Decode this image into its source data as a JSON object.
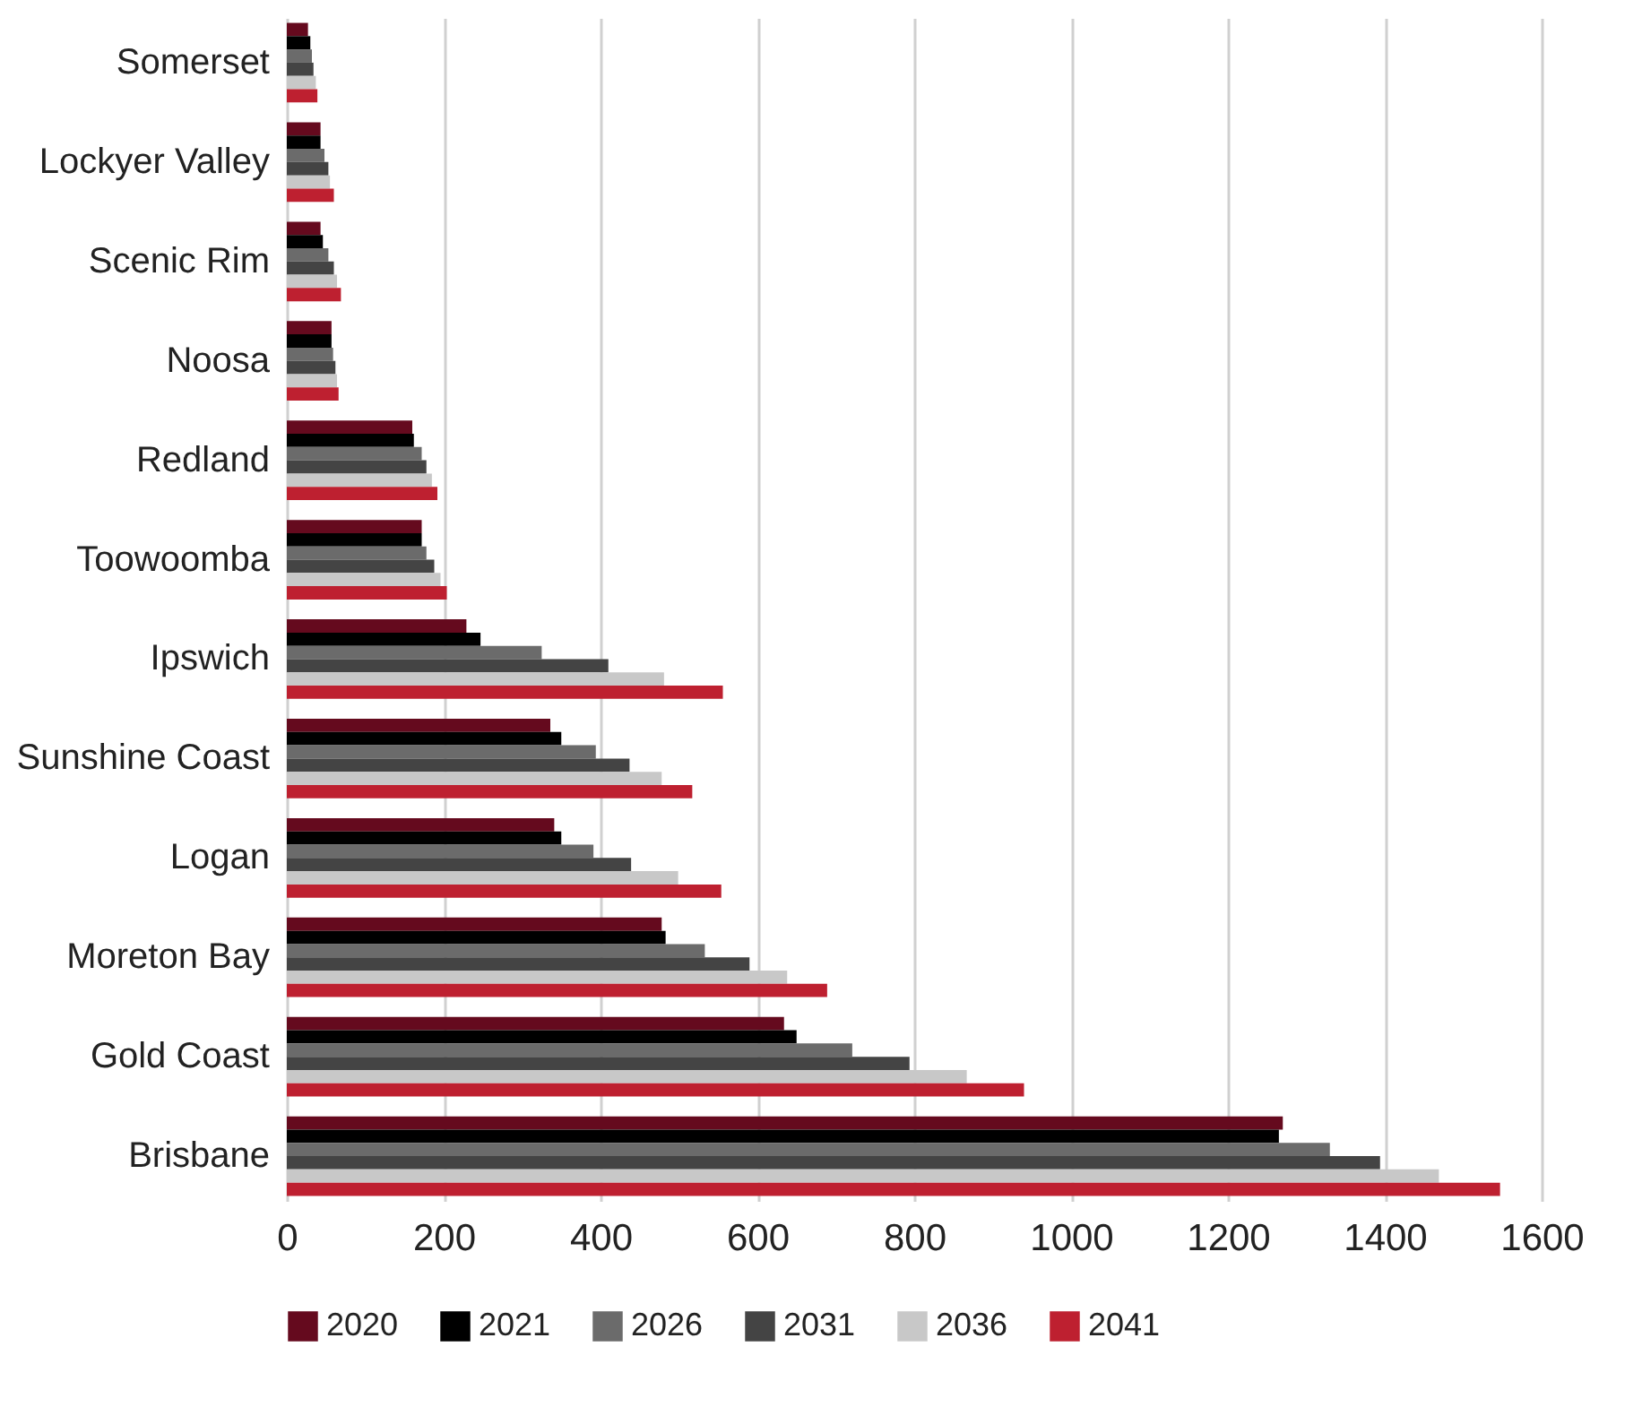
{
  "chart_data": {
    "type": "bar",
    "orientation": "horizontal",
    "categories": [
      "Somerset",
      "Lockyer Valley",
      "Scenic Rim",
      "Noosa",
      "Redland",
      "Toowoomba",
      "Ipswich",
      "Sunshine Coast",
      "Logan",
      "Moreton Bay",
      "Gold Coast",
      "Brisbane"
    ],
    "series": [
      {
        "name": "2020",
        "color": "#650a1e",
        "values": [
          27,
          43,
          43,
          57,
          160,
          172,
          229,
          336,
          341,
          478,
          634,
          1270
        ]
      },
      {
        "name": "2021",
        "color": "#000000",
        "values": [
          30,
          43,
          46,
          57,
          162,
          172,
          247,
          350,
          350,
          483,
          650,
          1265
        ]
      },
      {
        "name": "2026",
        "color": "#6b6b6b",
        "values": [
          32,
          48,
          53,
          59,
          172,
          178,
          325,
          394,
          391,
          533,
          721,
          1330
        ]
      },
      {
        "name": "2031",
        "color": "#444444",
        "values": [
          34,
          53,
          60,
          62,
          178,
          188,
          410,
          437,
          439,
          590,
          794,
          1394
        ]
      },
      {
        "name": "2036",
        "color": "#c8c8c8",
        "values": [
          37,
          55,
          64,
          64,
          185,
          196,
          481,
          478,
          499,
          638,
          867,
          1469
        ]
      },
      {
        "name": "2041",
        "color": "#be2030",
        "values": [
          39,
          60,
          69,
          66,
          192,
          204,
          556,
          517,
          554,
          689,
          940,
          1547
        ]
      }
    ],
    "xlim": [
      0,
      1600
    ],
    "xticks": [
      0,
      200,
      400,
      600,
      800,
      1000,
      1200,
      1400,
      1600
    ],
    "grid": "x",
    "legend": "bottom"
  }
}
